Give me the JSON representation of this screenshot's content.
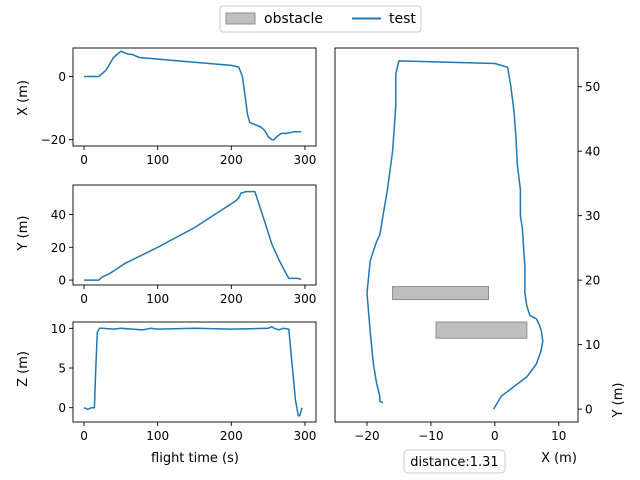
{
  "legend": {
    "entries": [
      {
        "label": "obstacle",
        "kind": "patch",
        "color": "#bfbfbf",
        "edge": "#8c8c8c"
      },
      {
        "label": "test",
        "kind": "line",
        "color": "#1f77b4"
      }
    ],
    "placement": "top-center"
  },
  "annotation": {
    "text": "distance:1.31"
  },
  "chart_data": [
    {
      "type": "line",
      "panel": "x-vs-time",
      "xlabel": "",
      "ylabel": "X (m)",
      "xlim": [
        -15,
        315
      ],
      "ylim": [
        -22,
        9
      ],
      "xticks": [
        0,
        100,
        200,
        300
      ],
      "yticks": [
        -20,
        0
      ],
      "series": [
        {
          "name": "test",
          "color": "#1f77b4",
          "x": [
            0,
            10,
            20,
            30,
            40,
            50,
            55,
            60,
            65,
            75,
            100,
            150,
            200,
            210,
            215,
            218,
            222,
            225,
            230,
            240,
            245,
            250,
            255,
            258,
            262,
            268,
            275,
            285,
            295
          ],
          "y": [
            0,
            0,
            0,
            2,
            6,
            8,
            7.5,
            7,
            7,
            6,
            5.5,
            4.5,
            3.5,
            3,
            0,
            -5,
            -12,
            -14.5,
            -15,
            -16,
            -17,
            -19,
            -20,
            -20,
            -19,
            -18,
            -18,
            -17.5,
            -17.5
          ]
        }
      ]
    },
    {
      "type": "line",
      "panel": "y-vs-time",
      "xlabel": "",
      "ylabel": "Y (m)",
      "xlim": [
        -15,
        315
      ],
      "ylim": [
        -3,
        58
      ],
      "xticks": [
        0,
        100,
        200,
        300
      ],
      "yticks": [
        0,
        20,
        40
      ],
      "series": [
        {
          "name": "test",
          "color": "#1f77b4",
          "x": [
            0,
            20,
            25,
            35,
            45,
            55,
            100,
            150,
            205,
            210,
            213,
            220,
            232,
            237,
            245,
            255,
            265,
            272,
            278,
            282,
            290,
            295
          ],
          "y": [
            0,
            0,
            2,
            4,
            7,
            10,
            20,
            32,
            48,
            50,
            53,
            54,
            54,
            47,
            36,
            22,
            12,
            6,
            1,
            1,
            1,
            0.5
          ]
        }
      ]
    },
    {
      "type": "line",
      "panel": "z-vs-time",
      "xlabel": "flight time (s)",
      "ylabel": "Z (m)",
      "xlim": [
        -15,
        315
      ],
      "ylim": [
        -1.8,
        10.8
      ],
      "xticks": [
        0,
        100,
        200,
        300
      ],
      "yticks": [
        0,
        5,
        10
      ],
      "series": [
        {
          "name": "test",
          "color": "#1f77b4",
          "x": [
            0,
            5,
            10,
            14,
            16,
            18,
            21,
            25,
            40,
            50,
            80,
            90,
            100,
            150,
            200,
            250,
            255,
            258,
            265,
            270,
            278,
            280,
            284,
            287,
            291,
            293,
            296
          ],
          "y": [
            0,
            -0.2,
            0,
            0,
            5,
            9.5,
            10,
            10,
            9.9,
            10,
            9.8,
            10,
            9.9,
            10,
            9.9,
            10,
            10.2,
            10,
            9.8,
            10,
            9.9,
            8,
            4,
            1,
            -1,
            -1,
            0
          ]
        }
      ]
    },
    {
      "type": "line",
      "panel": "trajectory",
      "xlabel": "X (m)",
      "ylabel": "Y (m)",
      "xlim": [
        -25,
        13
      ],
      "ylim": [
        -2,
        56
      ],
      "xticks": [
        -20,
        -10,
        0,
        10
      ],
      "yticks": [
        0,
        10,
        20,
        30,
        40,
        50
      ],
      "obstacles": [
        {
          "x": [
            -16,
            -1
          ],
          "y": [
            17,
            19
          ],
          "color": "#bfbfbf"
        },
        {
          "x": [
            -9.2,
            5
          ],
          "y": [
            11,
            13.5
          ],
          "color": "#bfbfbf"
        }
      ],
      "series": [
        {
          "name": "test",
          "color": "#1f77b4",
          "x": [
            -0.2,
            1,
            3,
            5,
            6.5,
            7.2,
            7.5,
            7.3,
            7,
            6.5,
            5.5,
            5,
            4.7,
            4.7,
            4.5,
            4.3,
            4,
            4,
            3.5,
            3.3,
            3,
            2.5,
            2,
            0,
            -15,
            -15.5,
            -15.5,
            -16,
            -16.8,
            -17.5,
            -18,
            -18.5,
            -19.5,
            -20,
            -19.5,
            -19,
            -18.5,
            -18,
            -18,
            -17.5
          ],
          "y": [
            0,
            2,
            3.5,
            5,
            7,
            9,
            10.5,
            12,
            13,
            14,
            14.5,
            16,
            18,
            22,
            25,
            28,
            30,
            34,
            38,
            42,
            46,
            50,
            53,
            53.6,
            54,
            52,
            47,
            40,
            34,
            30,
            27,
            26,
            23,
            18,
            12,
            7,
            4,
            2,
            1.2,
            1
          ]
        }
      ]
    }
  ]
}
